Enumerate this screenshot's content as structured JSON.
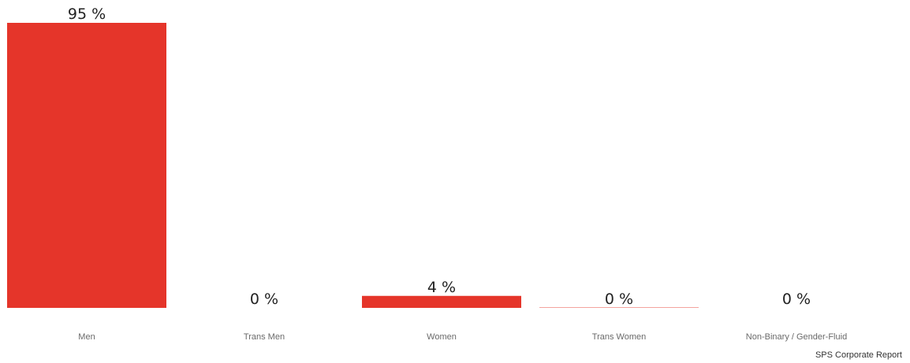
{
  "chart_data": {
    "type": "bar",
    "categories": [
      "Men",
      "Trans Men",
      "Women",
      "Trans Women",
      "Non-Binary / Gender-Fluid"
    ],
    "values": [
      95,
      0,
      4,
      0,
      0
    ],
    "value_labels": [
      "95 %",
      "0 %",
      "4 %",
      "0 %",
      "0 %"
    ],
    "unit": "%",
    "ylim": [
      0,
      95
    ],
    "grid": false,
    "legend": "none",
    "bar_color": "#e5352a"
  },
  "footer": {
    "source": "SPS Corporate Report"
  }
}
